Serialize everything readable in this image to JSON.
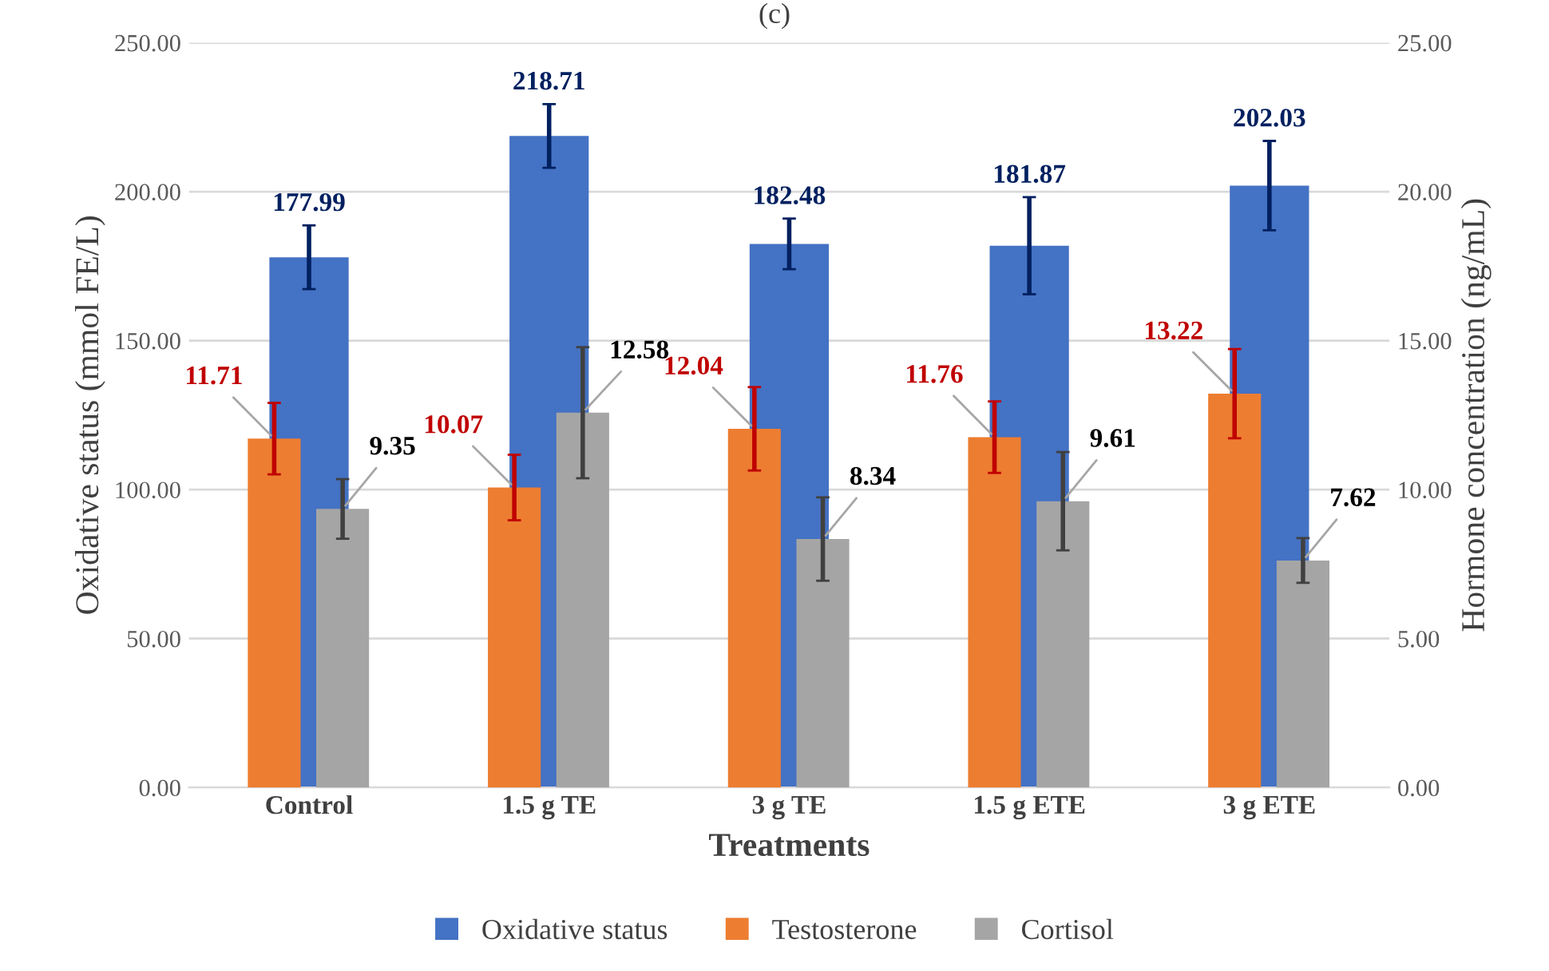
{
  "chart_data": {
    "type": "bar",
    "title": "(c)",
    "xlabel": "Treatments",
    "ylabel": "Oxidative status (mmol FE/L)",
    "y2label": "Hormone concentration (ng/mL)",
    "categories": [
      "Control",
      "1.5 g TE",
      "3 g TE",
      "1.5 g ETE",
      "3 g ETE"
    ],
    "series": [
      {
        "name": "Oxidative status",
        "color": "#4472c4",
        "values": [
          177.99,
          218.71,
          182.48,
          181.87,
          202.03
        ],
        "errors": [
          10.7,
          10.7,
          8.5,
          16.3,
          15.0
        ]
      },
      {
        "name": "Testosterone",
        "color": "#ed7d31",
        "axis": "y2",
        "values": [
          11.71,
          10.07,
          12.04,
          11.76,
          13.22
        ],
        "errors": [
          1.2,
          1.1,
          1.4,
          1.2,
          1.5
        ]
      },
      {
        "name": "Cortisol",
        "color": "#a5a5a5",
        "axis": "y2",
        "values": [
          9.35,
          12.58,
          8.34,
          9.61,
          7.62
        ],
        "errors": [
          1.0,
          2.2,
          1.4,
          1.65,
          0.75
        ]
      }
    ],
    "ylim": [
      0,
      250
    ],
    "yticks": [
      {
        "value": 0,
        "label": "0.00"
      },
      {
        "value": 50,
        "label": "50.00"
      },
      {
        "value": 100,
        "label": "100.00"
      },
      {
        "value": 150,
        "label": "150.00"
      },
      {
        "value": 200,
        "label": "200.00"
      },
      {
        "value": 250,
        "label": "250.00"
      }
    ],
    "y2lim": [
      0,
      25
    ],
    "y2ticks": [
      {
        "value": 0,
        "label": "0.00"
      },
      {
        "value": 5,
        "label": "5.00"
      },
      {
        "value": 10,
        "label": "10.00"
      },
      {
        "value": 15,
        "label": "15.00"
      },
      {
        "value": 20,
        "label": "20.00"
      },
      {
        "value": 25,
        "label": "25.00"
      }
    ],
    "grid": "y",
    "legend": "bottom",
    "data_labels": true
  }
}
